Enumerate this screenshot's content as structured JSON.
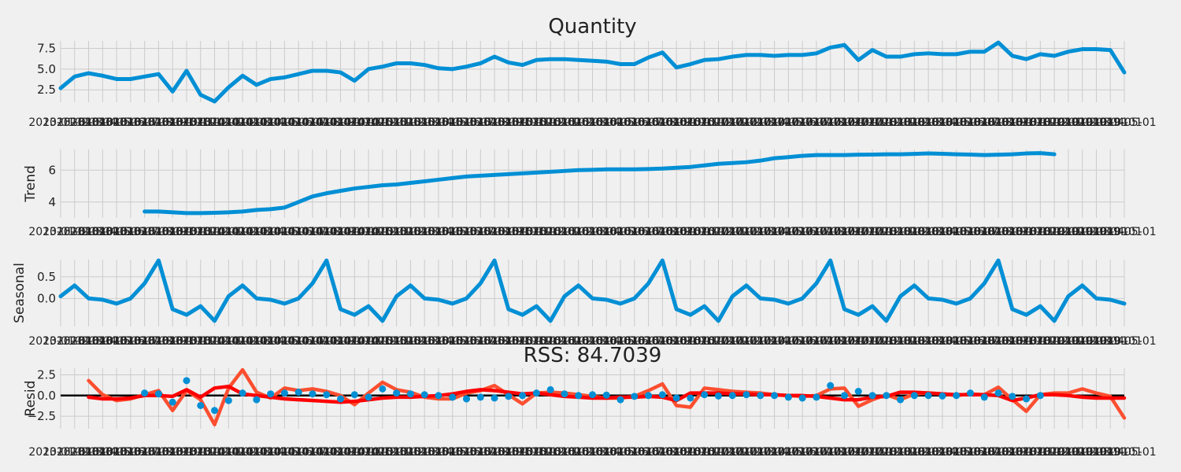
{
  "chart_data": [
    {
      "type": "line",
      "title": "Quantity",
      "xlabel": "",
      "ylabel": "",
      "ylim": [
        1.0,
        8.4
      ],
      "yticks": [
        "2.5",
        "5.0",
        "7.5"
      ],
      "ytick_values": [
        2.5,
        5.0,
        7.5
      ],
      "grid": true,
      "color": "#008fd5",
      "values": [
        2.7,
        4.1,
        4.5,
        4.2,
        3.8,
        3.8,
        4.1,
        4.4,
        2.3,
        4.8,
        1.9,
        1.1,
        2.8,
        4.2,
        3.1,
        3.8,
        4.0,
        4.4,
        4.8,
        4.8,
        4.6,
        3.6,
        5.0,
        5.3,
        5.7,
        5.7,
        5.5,
        5.1,
        5.0,
        5.3,
        5.7,
        6.5,
        5.8,
        5.5,
        6.1,
        6.2,
        6.2,
        6.1,
        6.0,
        5.9,
        5.6,
        5.6,
        6.4,
        7.0,
        5.2,
        5.6,
        6.1,
        6.2,
        6.5,
        6.7,
        6.7,
        6.6,
        6.7,
        6.7,
        6.9,
        7.6,
        7.9,
        6.1,
        7.3,
        6.5,
        6.5,
        6.8,
        6.9,
        6.8,
        6.8,
        7.1,
        7.1,
        8.2,
        6.6,
        6.2,
        6.8,
        6.6,
        7.1,
        7.4,
        7.4,
        7.3,
        4.6
      ]
    },
    {
      "type": "line",
      "title": "",
      "xlabel": "",
      "ylabel": "Trend",
      "ylim": [
        3.0,
        7.3
      ],
      "yticks": [
        "4",
        "6"
      ],
      "ytick_values": [
        4,
        6
      ],
      "grid": true,
      "color": "#008fd5",
      "values": [
        null,
        null,
        null,
        null,
        null,
        null,
        3.4,
        3.4,
        3.35,
        3.3,
        3.3,
        3.32,
        3.35,
        3.4,
        3.5,
        3.55,
        3.65,
        4.0,
        4.35,
        4.55,
        4.7,
        4.85,
        4.95,
        5.05,
        5.1,
        5.2,
        5.3,
        5.4,
        5.5,
        5.6,
        5.65,
        5.7,
        5.75,
        5.8,
        5.85,
        5.9,
        5.95,
        6.0,
        6.02,
        6.05,
        6.05,
        6.05,
        6.07,
        6.1,
        6.15,
        6.2,
        6.3,
        6.4,
        6.45,
        6.5,
        6.6,
        6.75,
        6.82,
        6.9,
        6.95,
        6.95,
        6.95,
        6.97,
        6.98,
        7.0,
        7.0,
        7.02,
        7.05,
        7.03,
        7.0,
        6.98,
        6.95,
        6.97,
        7.0,
        7.05,
        7.07,
        7.0,
        null,
        null,
        null,
        null,
        null
      ]
    },
    {
      "type": "line",
      "title": "",
      "xlabel": "",
      "ylabel": "Seasonal",
      "ylim": [
        -0.65,
        0.9
      ],
      "yticks": [
        "0.0",
        "0.5"
      ],
      "ytick_values": [
        0,
        0.5
      ],
      "grid": true,
      "color": "#008fd5",
      "values": [
        0.05,
        0.3,
        0.0,
        -0.03,
        -0.12,
        0.0,
        0.35,
        0.88,
        -0.25,
        -0.38,
        -0.18,
        -0.52,
        0.05,
        0.3,
        0.0,
        -0.03,
        -0.12,
        0.0,
        0.35,
        0.88,
        -0.25,
        -0.38,
        -0.18,
        -0.52,
        0.05,
        0.3,
        0.0,
        -0.03,
        -0.12,
        0.0,
        0.35,
        0.88,
        -0.25,
        -0.38,
        -0.18,
        -0.52,
        0.05,
        0.3,
        0.0,
        -0.03,
        -0.12,
        0.0,
        0.35,
        0.88,
        -0.25,
        -0.38,
        -0.18,
        -0.52,
        0.05,
        0.3,
        0.0,
        -0.03,
        -0.12,
        0.0,
        0.35,
        0.88,
        -0.25,
        -0.38,
        -0.18,
        -0.52,
        0.05,
        0.3,
        0.0,
        -0.03,
        -0.12,
        0.0,
        0.35,
        0.88,
        -0.25,
        -0.38,
        -0.18,
        -0.52,
        0.05,
        0.3,
        0.0,
        -0.03,
        -0.12
      ]
    },
    {
      "type": "scatter",
      "title": "RSS: 84.7039",
      "xlabel": "",
      "ylabel": "Resid",
      "ylim": [
        -4.0,
        3.3
      ],
      "yticks": [
        "−2.5",
        "0.0",
        "2.5"
      ],
      "ytick_values": [
        -2.5,
        0.0,
        2.5
      ],
      "grid": true,
      "zero_line": true,
      "point_color": "#008fd5",
      "values": [
        null,
        null,
        null,
        null,
        null,
        null,
        0.3,
        0.2,
        -0.8,
        1.8,
        -1.2,
        -1.8,
        -0.6,
        0.3,
        -0.5,
        0.2,
        0.3,
        0.4,
        0.2,
        0.1,
        -0.4,
        0.1,
        -0.2,
        0.8,
        0.3,
        0.2,
        0.1,
        0.0,
        -0.2,
        -0.4,
        -0.2,
        -0.3,
        -0.1,
        0.0,
        0.3,
        0.7,
        0.2,
        0.0,
        0.1,
        0.05,
        -0.5,
        -0.1,
        0.0,
        0.1,
        -0.3,
        -0.3,
        0.1,
        -0.05,
        0.0,
        0.1,
        0.0,
        0.0,
        -0.2,
        -0.3,
        -0.2,
        1.2,
        0.0,
        0.5,
        0.0,
        0.0,
        -0.5,
        0.0,
        0.0,
        -0.05,
        0.0,
        0.3,
        -0.2,
        0.3,
        -0.1,
        -0.4,
        0.0,
        null,
        null,
        null,
        null,
        null,
        null
      ],
      "overlay_series": [
        {
          "color": "#fc4f30",
          "values": [
            null,
            null,
            1.8,
            0.1,
            -0.6,
            -0.4,
            0.1,
            0.6,
            -1.8,
            0.6,
            -0.5,
            -3.5,
            0.9,
            3.1,
            0.4,
            -0.3,
            0.9,
            0.6,
            0.8,
            0.5,
            0.0,
            -1.1,
            0.3,
            1.6,
            0.7,
            0.4,
            -0.2,
            -0.4,
            -0.4,
            0.3,
            0.6,
            1.2,
            0.1,
            -1.0,
            0.3,
            0.4,
            0.3,
            0.1,
            -0.1,
            -0.3,
            -0.3,
            -0.1,
            0.6,
            1.4,
            -1.2,
            -1.4,
            0.9,
            0.7,
            0.5,
            0.4,
            0.3,
            0.1,
            0.0,
            -0.1,
            0.0,
            0.8,
            0.9,
            -1.3,
            -0.5,
            0.1,
            -0.5,
            0.2,
            0.3,
            0.2,
            0.0,
            0.2,
            0.1,
            1.0,
            -0.5,
            -1.9,
            0.1,
            0.3,
            0.3,
            0.8,
            0.3,
            -0.1,
            -2.7
          ]
        },
        {
          "color": "#ff0000",
          "values": [
            null,
            null,
            -0.2,
            -0.4,
            -0.4,
            -0.3,
            0.0,
            0.0,
            -0.1,
            0.7,
            -0.2,
            0.9,
            1.1,
            0.2,
            0.0,
            -0.2,
            -0.4,
            -0.5,
            -0.6,
            -0.7,
            -0.8,
            -0.7,
            -0.5,
            -0.3,
            -0.2,
            -0.2,
            -0.1,
            0.0,
            0.2,
            0.5,
            0.7,
            0.6,
            0.4,
            0.2,
            0.3,
            0.1,
            -0.1,
            -0.2,
            -0.3,
            -0.3,
            -0.2,
            -0.2,
            -0.1,
            -0.2,
            -0.6,
            0.3,
            0.3,
            0.3,
            0.2,
            0.2,
            0.1,
            0.1,
            0.0,
            0.0,
            -0.1,
            -0.3,
            -0.5,
            -0.5,
            -0.2,
            -0.1,
            0.4,
            0.4,
            0.3,
            0.2,
            0.1,
            0.1,
            0.1,
            0.0,
            -0.6,
            -0.3,
            0.1,
            0.1,
            0.0,
            -0.2,
            -0.3,
            -0.3,
            -0.3
          ]
        }
      ]
    }
  ],
  "x_tick_labels": [
    "2013-01-01",
    "2013-02-01",
    "2013-03-01",
    "2013-04-01",
    "2013-05-01",
    "2013-06-01",
    "2013-07-01",
    "2013-08-01",
    "2013-09-01",
    "2013-10-01",
    "2013-11-01",
    "2013-12-01",
    "2014-01-01",
    "2014-02-01",
    "2014-03-01",
    "2014-04-01",
    "2014-05-01",
    "2014-06-01",
    "2014-07-01",
    "2014-08-01",
    "2014-09-01",
    "2014-10-01",
    "2014-11-01",
    "2014-12-01",
    "2015-01-01",
    "2015-02-01",
    "2015-03-01",
    "2015-04-01",
    "2015-05-01",
    "2015-06-01",
    "2015-07-01",
    "2015-08-01",
    "2015-09-01",
    "2015-10-01",
    "2015-11-01",
    "2015-12-01",
    "2016-01-01",
    "2016-02-01",
    "2016-03-01",
    "2016-04-01",
    "2016-05-01",
    "2016-06-01",
    "2016-07-01",
    "2016-08-01",
    "2016-09-01",
    "2016-10-01",
    "2016-11-01",
    "2016-12-01",
    "2017-01-01",
    "2017-02-01",
    "2017-03-01",
    "2017-04-01",
    "2017-05-01",
    "2017-06-01",
    "2017-07-01",
    "2017-08-01",
    "2017-09-01",
    "2017-10-01",
    "2017-11-01",
    "2017-12-01",
    "2018-01-01",
    "2018-02-01",
    "2018-03-01",
    "2018-04-01",
    "2018-05-01",
    "2018-06-01",
    "2018-07-01",
    "2018-08-01",
    "2018-09-01",
    "2018-10-01",
    "2018-11-01",
    "2018-12-01",
    "2019-01-01",
    "2019-02-01",
    "2019-03-01",
    "2019-04-01",
    "2019-05-01"
  ],
  "colors": {
    "background": "#f0f0f0",
    "grid": "#cbcbcb",
    "zero_line": "#000000"
  }
}
